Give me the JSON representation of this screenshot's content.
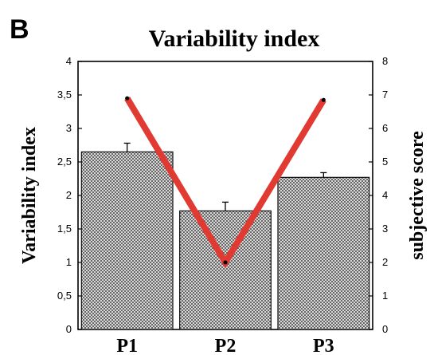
{
  "panel_label": "B",
  "chart_data": {
    "type": "bar",
    "title": "Variability index",
    "categories": [
      "P1",
      "P2",
      "P3"
    ],
    "ylabel": "Variability index",
    "y2label": "subjective score",
    "ylim": [
      0,
      4
    ],
    "y2lim": [
      0,
      8
    ],
    "yticks": [
      "0",
      "0,5",
      "1",
      "1,5",
      "2",
      "2,5",
      "3",
      "3,5",
      "4"
    ],
    "y2ticks": [
      "0",
      "1",
      "2",
      "3",
      "4",
      "5",
      "6",
      "7",
      "8"
    ],
    "series": [
      {
        "type": "bar",
        "axis": "left",
        "values": [
          2.65,
          1.77,
          2.27
        ],
        "errors": [
          0.13,
          0.13,
          0.07
        ],
        "fill": "dotted-grey"
      },
      {
        "type": "line",
        "axis": "right",
        "values": [
          6.9,
          2.0,
          6.85
        ],
        "color": "#e03a32"
      }
    ]
  }
}
